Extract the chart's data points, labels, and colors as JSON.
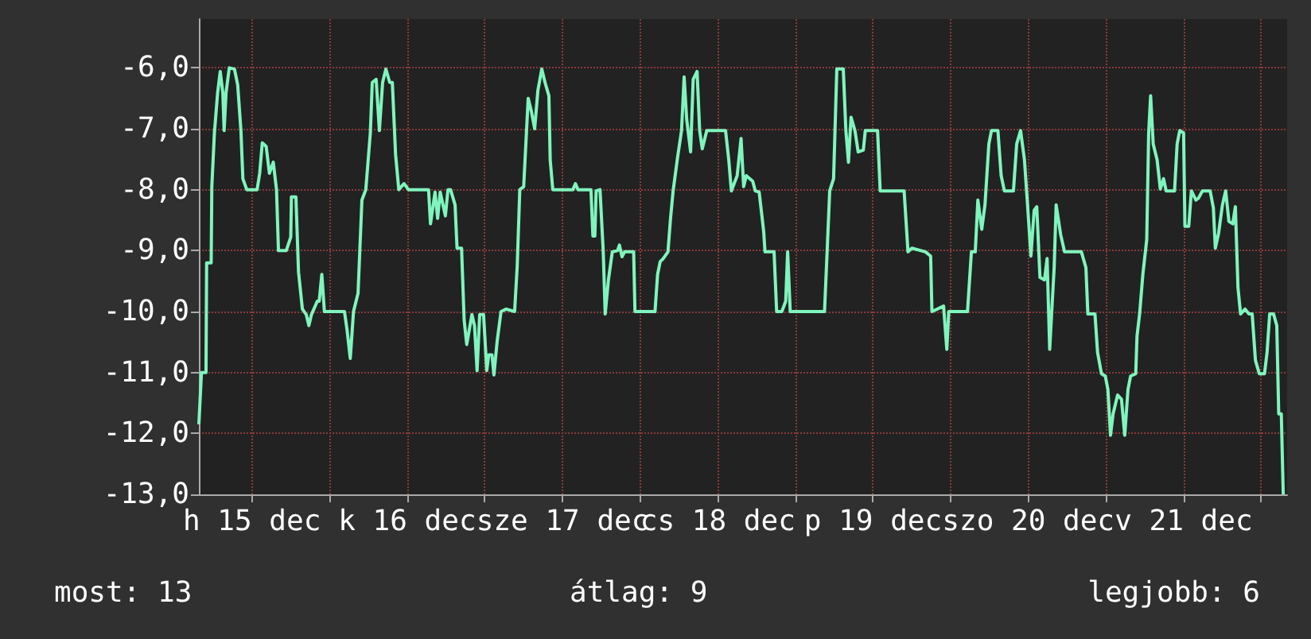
{
  "chart_data": {
    "type": "line",
    "line_style": "solid",
    "marker": "none",
    "grid": true,
    "xlim": [
      "--12-15T03:48",
      "--12-22T04:00"
    ],
    "xticks": [
      {
        "value": "--12-15T12:00",
        "label": "h 15 dec"
      },
      {
        "value": "--12-16T00:00",
        "label": null
      },
      {
        "value": "--12-16T12:00",
        "label": "k 16 dec"
      },
      {
        "value": "--12-17T00:00",
        "label": null
      },
      {
        "value": "--12-17T12:00",
        "label": "sze 17 dec"
      },
      {
        "value": "--12-18T00:00",
        "label": null
      },
      {
        "value": "--12-18T12:00",
        "label": "cs 18 dec"
      },
      {
        "value": "--12-19T00:00",
        "label": null
      },
      {
        "value": "--12-19T12:00",
        "label": "p 19 dec"
      },
      {
        "value": "--12-20T00:00",
        "label": null
      },
      {
        "value": "--12-20T12:00",
        "label": "szo 20 dec"
      },
      {
        "value": "--12-21T00:00",
        "label": null
      },
      {
        "value": "--12-21T12:00",
        "label": "v 21 dec"
      },
      {
        "value": "--12-22T00:00",
        "label": null
      }
    ],
    "ylim": [
      -13,
      -5.2
    ],
    "yticks": [
      {
        "value": -13,
        "label": "-13,0"
      },
      {
        "value": -12,
        "label": "-12,0"
      },
      {
        "value": -11,
        "label": "-11,0"
      },
      {
        "value": -10,
        "label": "-10,0"
      },
      {
        "value": -9,
        "label": "-9,0"
      },
      {
        "value": -8,
        "label": "-8,0"
      },
      {
        "value": -7,
        "label": "-7,0"
      },
      {
        "value": -6,
        "label": "-6,0"
      }
    ],
    "annotations": [
      "most: 13",
      "átlag: 9",
      "legjobb: 6"
    ],
    "series": [
      {
        "color": "#7ff5bd",
        "x": [
          "--12-15T03:48",
          "--12-15T04:12",
          "--12-15T04:54",
          "--12-15T05:00",
          "--12-15T05:42",
          "--12-15T05:48",
          "--12-15T06:12",
          "--12-15T06:42",
          "--12-15T07:06",
          "--12-15T07:30",
          "--12-15T07:42",
          "--12-15T08:00",
          "--12-15T08:30",
          "--12-15T09:18",
          "--12-15T09:48",
          "--12-15T10:18",
          "--12-15T10:36",
          "--12-15T11:12",
          "--12-15T12:48",
          "--12-15T13:12",
          "--12-15T13:36",
          "--12-15T14:12",
          "--12-15T14:42",
          "--12-15T15:18",
          "--12-15T15:48",
          "--12-15T16:06",
          "--12-15T17:18",
          "--12-15T18:00",
          "--12-15T18:06",
          "--12-15T18:48",
          "--12-15T19:12",
          "--12-15T19:48",
          "--12-15T20:24",
          "--12-15T20:48",
          "--12-15T21:12",
          "--12-15T22:06",
          "--12-15T22:24",
          "--12-15T22:48",
          "--12-15T23:12",
          "--12-16T02:18",
          "--12-16T02:42",
          "--12-16T03:12",
          "--12-16T03:42",
          "--12-16T04:24",
          "--12-16T05:00",
          "--12-16T05:36",
          "--12-16T06:18",
          "--12-16T06:36",
          "--12-16T07:12",
          "--12-16T07:42",
          "--12-16T08:12",
          "--12-16T08:42",
          "--12-16T09:18",
          "--12-16T09:42",
          "--12-16T10:12",
          "--12-16T10:42",
          "--12-16T11:30",
          "--12-16T12:12",
          "--12-16T15:18",
          "--12-16T15:36",
          "--12-16T16:18",
          "--12-16T16:42",
          "--12-16T17:06",
          "--12-16T17:54",
          "--12-16T18:18",
          "--12-16T18:42",
          "--12-16T19:24",
          "--12-16T19:42",
          "--12-16T20:24",
          "--12-16T20:48",
          "--12-16T21:12",
          "--12-16T22:00",
          "--12-16T22:24",
          "--12-16T22:48",
          "--12-16T23:12",
          "--12-16T23:48",
          "--12-17T00:18",
          "--12-17T00:36",
          "--12-17T01:06",
          "--12-17T01:24",
          "--12-17T01:54",
          "--12-17T02:30",
          "--12-17T03:18",
          "--12-17T04:36",
          "--12-17T05:00",
          "--12-17T05:24",
          "--12-17T06:00",
          "--12-17T06:42",
          "--12-17T07:12",
          "--12-17T07:42",
          "--12-17T08:12",
          "--12-17T08:48",
          "--12-17T09:18",
          "--12-17T09:54",
          "--12-17T10:06",
          "--12-17T10:30",
          "--12-17T13:36",
          "--12-17T14:00",
          "--12-17T14:24",
          "--12-17T16:24",
          "--12-17T16:42",
          "--12-17T17:00",
          "--12-17T17:12",
          "--12-17T17:48",
          "--12-17T18:18",
          "--12-17T18:36",
          "--12-17T19:06",
          "--12-17T19:42",
          "--12-17T20:30",
          "--12-17T20:48",
          "--12-17T21:12",
          "--12-17T21:36",
          "--12-17T23:00",
          "--12-17T23:12",
          "--12-18T02:18",
          "--12-18T02:42",
          "--12-18T03:06",
          "--12-18T03:30",
          "--12-18T04:18",
          "--12-18T04:42",
          "--12-18T05:06",
          "--12-18T05:48",
          "--12-18T06:24",
          "--12-18T06:48",
          "--12-18T07:12",
          "--12-18T07:48",
          "--12-18T08:12",
          "--12-18T08:48",
          "--12-18T09:12",
          "--12-18T09:36",
          "--12-18T10:18",
          "--12-18T13:12",
          "--12-18T13:42",
          "--12-18T14:06",
          "--12-18T15:00",
          "--12-18T15:36",
          "--12-18T16:00",
          "--12-18T16:24",
          "--12-18T17:24",
          "--12-18T17:48",
          "--12-18T18:24",
          "--12-18T19:06",
          "--12-18T19:18",
          "--12-18T20:42",
          "--12-18T21:06",
          "--12-18T21:54",
          "--12-18T22:30",
          "--12-18T22:48",
          "--12-18T23:12",
          "--12-19T04:30",
          "--12-19T04:54",
          "--12-19T05:18",
          "--12-19T05:54",
          "--12-19T06:24",
          "--12-19T07:24",
          "--12-19T07:48",
          "--12-19T08:12",
          "--12-19T08:36",
          "--12-19T09:12",
          "--12-19T09:42",
          "--12-19T10:30",
          "--12-19T10:48",
          "--12-19T12:42",
          "--12-19T13:06",
          "--12-19T16:48",
          "--12-19T17:24",
          "--12-19T18:00",
          "--12-19T20:06",
          "--12-19T20:54",
          "--12-19T21:06",
          "--12-19T22:54",
          "--12-19T23:24",
          "--12-19T23:42",
          "--12-20T02:36",
          "--12-20T03:12",
          "--12-20T03:48",
          "--12-20T04:12",
          "--12-20T04:48",
          "--12-20T05:18",
          "--12-20T05:54",
          "--12-20T06:18",
          "--12-20T07:18",
          "--12-20T07:48",
          "--12-20T08:18",
          "--12-20T09:42",
          "--12-20T10:12",
          "--12-20T10:48",
          "--12-20T11:24",
          "--12-20T11:54",
          "--12-20T12:24",
          "--12-20T12:54",
          "--12-20T13:18",
          "--12-20T13:48",
          "--12-20T14:30",
          "--12-20T14:54",
          "--12-20T15:18",
          "--12-20T16:00",
          "--12-20T16:18",
          "--12-20T17:00",
          "--12-20T17:36",
          "--12-20T20:12",
          "--12-20T20:54",
          "--12-20T21:12",
          "--12-20T22:18",
          "--12-20T22:42",
          "--12-20T23:18",
          "--12-20T23:54",
          "--12-21T00:18",
          "--12-21T00:42",
          "--12-21T01:06",
          "--12-21T01:48",
          "--12-21T02:24",
          "--12-21T02:54",
          "--12-21T03:24",
          "--12-21T03:48",
          "--12-21T04:36",
          "--12-21T04:48",
          "--12-21T05:12",
          "--12-21T05:42",
          "--12-21T06:18",
          "--12-21T06:36",
          "--12-21T06:54",
          "--12-21T07:18",
          "--12-21T07:54",
          "--12-21T08:24",
          "--12-21T08:54",
          "--12-21T09:18",
          "--12-21T10:36",
          "--12-21T11:00",
          "--12-21T11:24",
          "--12-21T12:00",
          "--12-21T12:12",
          "--12-21T12:48",
          "--12-21T13:12",
          "--12-21T13:54",
          "--12-21T14:18",
          "--12-21T14:54",
          "--12-21T16:06",
          "--12-21T16:36",
          "--12-21T16:54",
          "--12-21T17:24",
          "--12-21T18:00",
          "--12-21T18:30",
          "--12-21T19:00",
          "--12-21T19:36",
          "--12-21T20:00",
          "--12-21T20:24",
          "--12-21T20:48",
          "--12-21T21:30",
          "--12-21T22:06",
          "--12-21T22:36",
          "--12-21T23:06",
          "--12-21T23:42",
          "--12-22T00:30",
          "--12-22T00:54",
          "--12-22T01:18",
          "--12-22T01:54",
          "--12-22T02:24",
          "--12-22T02:42",
          "--12-22T03:06",
          "--12-22T03:24"
        ],
        "values": [
          -11.85,
          -11,
          -11,
          -9.2,
          -9.2,
          -7.95,
          -7.07,
          -6.41,
          -6.06,
          -6.41,
          -7.03,
          -6.41,
          -6.0,
          -6.02,
          -6.28,
          -7.03,
          -7.82,
          -8,
          -8,
          -7.73,
          -7.23,
          -7.29,
          -7.73,
          -7.55,
          -8,
          -9,
          -9,
          -8.78,
          -8.12,
          -8.12,
          -9.35,
          -9.96,
          -10.05,
          -10.23,
          -10.05,
          -9.83,
          -9.83,
          -9.39,
          -10,
          -10,
          -10.3,
          -10.77,
          -10,
          -9.7,
          -8.17,
          -8,
          -7.07,
          -6.24,
          -6.19,
          -7.03,
          -6.24,
          -6.02,
          -6.24,
          -6.24,
          -7.42,
          -8,
          -7.9,
          -8,
          -8,
          -8.56,
          -8.04,
          -8.47,
          -8.04,
          -8.43,
          -8,
          -8,
          -8.25,
          -8.96,
          -8.96,
          -10.14,
          -10.54,
          -10.05,
          -10.23,
          -10.97,
          -10.05,
          -10.05,
          -10.97,
          -10.71,
          -10.71,
          -11.04,
          -10.49,
          -10,
          -9.96,
          -10,
          -9.26,
          -8,
          -7.95,
          -6.5,
          -6.72,
          -7.0,
          -6.37,
          -6.02,
          -6.24,
          -6.46,
          -7.51,
          -8,
          -8,
          -7.9,
          -8,
          -8,
          -8.76,
          -8.76,
          -8.02,
          -8,
          -9.02,
          -10.04,
          -9.48,
          -9.02,
          -9.0,
          -8.91,
          -9.1,
          -9.02,
          -9.02,
          -10,
          -10,
          -9.39,
          -9.18,
          -9.14,
          -9.02,
          -8.47,
          -8.02,
          -7.46,
          -7.03,
          -6.15,
          -6.85,
          -7.38,
          -6.19,
          -6.06,
          -7.03,
          -7.33,
          -7.03,
          -7.03,
          -7.51,
          -8.02,
          -7.77,
          -7.16,
          -7.95,
          -7.77,
          -7.86,
          -8.02,
          -8.04,
          -8.69,
          -9.02,
          -9.02,
          -10,
          -10,
          -9.83,
          -9.02,
          -10,
          -10,
          -9.02,
          -8.02,
          -7.82,
          -6.02,
          -6.02,
          -7.03,
          -7.55,
          -6.81,
          -7.03,
          -7.38,
          -7.35,
          -7.03,
          -7.03,
          -8.02,
          -8.02,
          -9.02,
          -8.96,
          -9.02,
          -9.09,
          -10,
          -9.91,
          -10.62,
          -10,
          -10,
          -9.02,
          -9.02,
          -8.17,
          -8.65,
          -8.25,
          -7.25,
          -7.03,
          -7.03,
          -7.77,
          -8.02,
          -8.02,
          -7.25,
          -7.03,
          -7.51,
          -8.28,
          -9.09,
          -8.34,
          -8.28,
          -9.44,
          -9.48,
          -9.13,
          -10.62,
          -9.26,
          -8.25,
          -8.74,
          -9.02,
          -9.02,
          -9.28,
          -10.04,
          -10.04,
          -10.67,
          -11.02,
          -11.06,
          -11.28,
          -12.03,
          -11.68,
          -11.37,
          -11.44,
          -12.03,
          -11.28,
          -11.06,
          -11.02,
          -10.4,
          -10.04,
          -9.39,
          -8.82,
          -7.07,
          -6.46,
          -7.25,
          -7.51,
          -7.99,
          -7.82,
          -8.02,
          -8.02,
          -7.25,
          -7.03,
          -7.07,
          -8.6,
          -8.6,
          -8.02,
          -8.17,
          -8.14,
          -8.02,
          -8.02,
          -8.3,
          -8.96,
          -8.72,
          -8.25,
          -8.02,
          -8.52,
          -8.56,
          -8.28,
          -9.6,
          -10.04,
          -9.96,
          -10.04,
          -10.04,
          -10.8,
          -11.02,
          -11.02,
          -10.67,
          -10.04,
          -10.04,
          -10.23,
          -11.68,
          -11.68,
          -13
        ]
      }
    ]
  }
}
